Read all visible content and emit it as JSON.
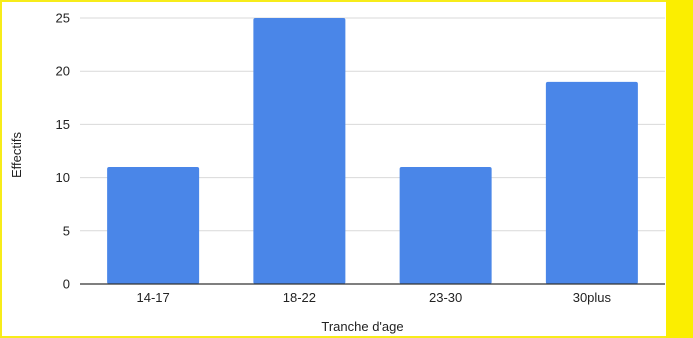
{
  "colors": {
    "bar": "#4a86e8",
    "grid": "#d9d9d9",
    "axis": "#333333",
    "frame": "#f7ec1a",
    "band": "#fbee00"
  },
  "chart_data": {
    "type": "bar",
    "categories": [
      "14-17",
      "18-22",
      "23-30",
      "30plus"
    ],
    "values": [
      11,
      25,
      11,
      19
    ],
    "title": "",
    "xlabel": "Tranche d'age",
    "ylabel": "Effectifs",
    "ylim": [
      0,
      25
    ],
    "yticks": [
      0,
      5,
      10,
      15,
      20,
      25
    ],
    "grid": true,
    "legend": "none"
  }
}
